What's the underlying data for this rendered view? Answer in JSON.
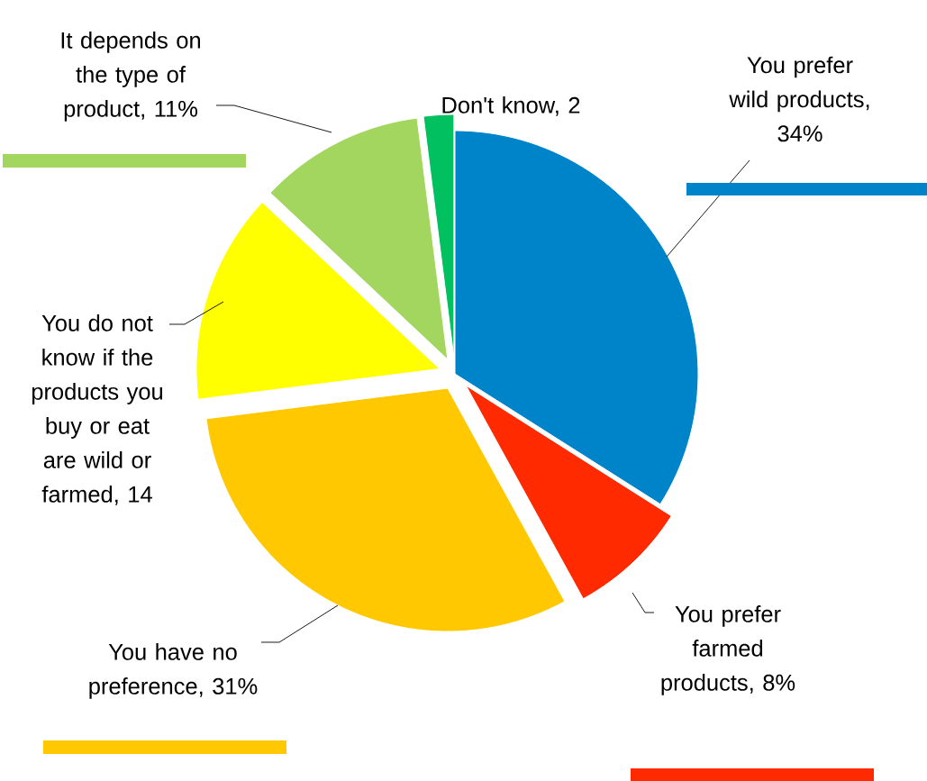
{
  "chart_data": {
    "type": "pie",
    "categories": [
      "You prefer wild products, 34%",
      "You prefer farmed products, 8%",
      "You have no preference, 31%",
      "You do not know if the products you buy or eat are wild or farmed, 14",
      "It depends on the type of product, 11%",
      "Don't know, 2"
    ],
    "values": [
      34,
      8,
      31,
      14,
      11,
      2
    ],
    "colors": [
      "#0084c9",
      "#ff2a00",
      "#ffc800",
      "#ffff00",
      "#a3d65f",
      "#00c060"
    ]
  }
}
